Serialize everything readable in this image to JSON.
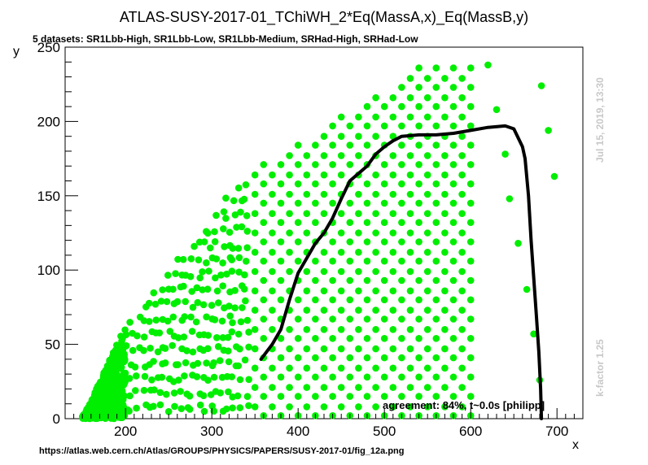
{
  "chart_data": {
    "type": "scatter",
    "title": "ATLAS-SUSY-2017-01_TChiWH_2*Eq(MassA,x)_Eq(MassB,y)",
    "subtitle": "5 datasets: SR1Lbb-High, SR1Lbb-Low, SR1Lbb-Medium, SRHad-High, SRHad-Low",
    "xlabel": "x",
    "ylabel": "y",
    "xlim": [
      130,
      730
    ],
    "ylim": [
      0,
      250
    ],
    "x_ticks": [
      200,
      300,
      400,
      500,
      600,
      700
    ],
    "y_ticks": [
      0,
      50,
      100,
      150,
      200,
      250
    ],
    "grid": false,
    "point_color": "#00ee00",
    "curve_color": "#000000",
    "agreement_label": "agreement: 84%, t~0.0s [philipp]",
    "side_label_top": "Jul 15, 2019, 13:30",
    "side_label_bottom": "k-factor 1.25",
    "source_url": "https://atlas.web.cern.ch/Atlas/GROUPS/PHYSICS/PAPERS/SUSY-2017-01/fig_12a.png",
    "series": [
      {
        "type": "line",
        "points": [
          [
            357,
            40
          ],
          [
            370,
            50
          ],
          [
            380,
            60
          ],
          [
            390,
            80
          ],
          [
            400,
            98
          ],
          [
            410,
            108
          ],
          [
            420,
            118
          ],
          [
            430,
            125
          ],
          [
            440,
            135
          ],
          [
            450,
            148
          ],
          [
            460,
            160
          ],
          [
            470,
            165
          ],
          [
            480,
            170
          ],
          [
            490,
            178
          ],
          [
            500,
            183
          ],
          [
            510,
            187
          ],
          [
            520,
            190
          ],
          [
            540,
            191
          ],
          [
            560,
            191
          ],
          [
            580,
            192
          ],
          [
            600,
            194
          ],
          [
            620,
            196
          ],
          [
            640,
            197
          ],
          [
            650,
            195
          ],
          [
            660,
            183
          ],
          [
            663,
            175
          ],
          [
            667,
            150
          ],
          [
            670,
            120
          ],
          [
            673,
            95
          ],
          [
            676,
            70
          ],
          [
            679,
            45
          ],
          [
            681,
            20
          ],
          [
            682,
            0
          ]
        ]
      }
    ]
  }
}
